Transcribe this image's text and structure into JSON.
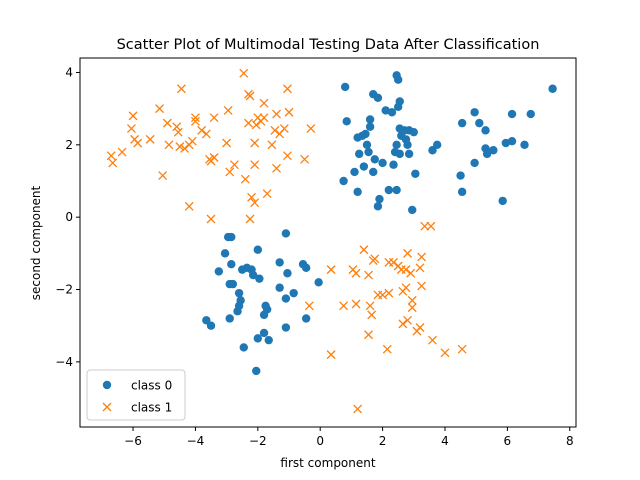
{
  "chart_data": {
    "type": "scatter",
    "title": "Scatter Plot of Multimodal Testing Data After Classification",
    "xlabel": "first component",
    "ylabel": "second component",
    "xlim": [
      -7.7,
      8.2
    ],
    "ylim": [
      -5.8,
      4.4
    ],
    "x_ticks": [
      -6,
      -4,
      -2,
      0,
      2,
      4,
      6,
      8
    ],
    "y_ticks": [
      -4,
      -2,
      0,
      2,
      4
    ],
    "legend": {
      "placement": "lower-left"
    },
    "grid": false,
    "series": [
      {
        "name": "class 0",
        "marker": "circle",
        "color": "#1f77b4",
        "points": [
          [
            2.45,
            3.92
          ],
          [
            2.5,
            3.8
          ],
          [
            1.7,
            3.4
          ],
          [
            1.85,
            3.3
          ],
          [
            0.8,
            3.6
          ],
          [
            2.55,
            3.2
          ],
          [
            2.5,
            3.05
          ],
          [
            2.1,
            2.95
          ],
          [
            2.3,
            2.9
          ],
          [
            1.6,
            2.7
          ],
          [
            0.85,
            2.65
          ],
          [
            1.6,
            2.5
          ],
          [
            2.55,
            2.45
          ],
          [
            2.7,
            2.4
          ],
          [
            2.85,
            2.4
          ],
          [
            3.0,
            2.35
          ],
          [
            2.6,
            2.25
          ],
          [
            2.75,
            2.15
          ],
          [
            1.45,
            2.3
          ],
          [
            1.35,
            2.25
          ],
          [
            1.2,
            2.2
          ],
          [
            1.5,
            2.0
          ],
          [
            2.45,
            2.0
          ],
          [
            2.8,
            2.0
          ],
          [
            3.75,
            2.0
          ],
          [
            1.55,
            1.8
          ],
          [
            1.25,
            1.75
          ],
          [
            2.4,
            1.8
          ],
          [
            2.55,
            1.75
          ],
          [
            2.85,
            1.75
          ],
          [
            3.6,
            1.85
          ],
          [
            1.75,
            1.6
          ],
          [
            2.0,
            1.5
          ],
          [
            1.4,
            1.4
          ],
          [
            2.35,
            1.45
          ],
          [
            1.1,
            1.25
          ],
          [
            1.7,
            1.25
          ],
          [
            3.05,
            1.2
          ],
          [
            0.75,
            1.0
          ],
          [
            2.2,
            0.75
          ],
          [
            2.45,
            0.75
          ],
          [
            1.2,
            0.7
          ],
          [
            1.9,
            0.5
          ],
          [
            1.85,
            0.3
          ],
          [
            2.95,
            0.2
          ],
          [
            4.95,
            2.9
          ],
          [
            4.55,
            2.6
          ],
          [
            5.1,
            2.6
          ],
          [
            5.3,
            2.4
          ],
          [
            6.15,
            2.85
          ],
          [
            6.75,
            2.85
          ],
          [
            6.15,
            2.1
          ],
          [
            5.95,
            2.05
          ],
          [
            6.55,
            2.0
          ],
          [
            5.3,
            1.9
          ],
          [
            5.55,
            1.85
          ],
          [
            5.35,
            1.75
          ],
          [
            4.95,
            1.5
          ],
          [
            4.5,
            1.15
          ],
          [
            4.55,
            0.7
          ],
          [
            5.85,
            0.45
          ],
          [
            7.45,
            3.55
          ],
          [
            -2.95,
            -0.55
          ],
          [
            -2.85,
            -0.55
          ],
          [
            -1.1,
            -0.45
          ],
          [
            -3.05,
            -1.0
          ],
          [
            -2.0,
            -0.9
          ],
          [
            -2.85,
            -1.3
          ],
          [
            -2.35,
            -1.4
          ],
          [
            -2.2,
            -1.45
          ],
          [
            -2.5,
            -1.45
          ],
          [
            -3.25,
            -1.5
          ],
          [
            -2.15,
            -1.6
          ],
          [
            -1.95,
            -1.7
          ],
          [
            -1.3,
            -1.25
          ],
          [
            -0.55,
            -1.3
          ],
          [
            -0.45,
            -1.4
          ],
          [
            -1.05,
            -1.55
          ],
          [
            -2.9,
            -1.85
          ],
          [
            -2.8,
            -1.85
          ],
          [
            -1.3,
            -1.95
          ],
          [
            -0.05,
            -1.8
          ],
          [
            -0.85,
            -2.1
          ],
          [
            -2.6,
            -2.1
          ],
          [
            -2.55,
            -2.3
          ],
          [
            -1.75,
            -2.45
          ],
          [
            -1.1,
            -2.25
          ],
          [
            -2.6,
            -2.45
          ],
          [
            -2.65,
            -2.6
          ],
          [
            -1.7,
            -2.55
          ],
          [
            -1.8,
            -2.7
          ],
          [
            -2.9,
            -2.8
          ],
          [
            -0.45,
            -2.8
          ],
          [
            -3.65,
            -2.85
          ],
          [
            -3.5,
            -3.0
          ],
          [
            -1.1,
            -3.05
          ],
          [
            -1.8,
            -3.2
          ],
          [
            -1.65,
            -3.4
          ],
          [
            -2.0,
            -3.35
          ],
          [
            -2.45,
            -3.6
          ],
          [
            -2.05,
            -4.25
          ]
        ]
      },
      {
        "name": "class 1",
        "marker": "x",
        "color": "#ff7f0e",
        "points": [
          [
            -2.45,
            3.98
          ],
          [
            -1.05,
            3.55
          ],
          [
            -4.45,
            3.55
          ],
          [
            -2.3,
            3.4
          ],
          [
            -2.25,
            3.35
          ],
          [
            -1.8,
            3.15
          ],
          [
            -5.15,
            3.0
          ],
          [
            -4.0,
            2.75
          ],
          [
            -4.0,
            2.65
          ],
          [
            -3.4,
            2.75
          ],
          [
            -2.95,
            2.95
          ],
          [
            -2.0,
            2.75
          ],
          [
            -1.8,
            2.75
          ],
          [
            -1.9,
            2.65
          ],
          [
            -1.4,
            2.85
          ],
          [
            -1.0,
            2.9
          ],
          [
            -2.3,
            2.6
          ],
          [
            -2.05,
            2.55
          ],
          [
            -6.0,
            2.8
          ],
          [
            -4.9,
            2.6
          ],
          [
            -4.6,
            2.5
          ],
          [
            -4.55,
            2.35
          ],
          [
            -3.8,
            2.4
          ],
          [
            -3.65,
            2.3
          ],
          [
            -6.05,
            2.45
          ],
          [
            -1.45,
            2.4
          ],
          [
            -1.3,
            2.3
          ],
          [
            -1.15,
            2.45
          ],
          [
            -0.3,
            2.45
          ],
          [
            -5.85,
            2.05
          ],
          [
            -5.95,
            2.15
          ],
          [
            -5.45,
            2.15
          ],
          [
            -4.85,
            2.0
          ],
          [
            -4.1,
            2.1
          ],
          [
            -4.5,
            1.95
          ],
          [
            -4.35,
            1.9
          ],
          [
            -4.2,
            2.0
          ],
          [
            -3.0,
            2.05
          ],
          [
            -2.1,
            2.05
          ],
          [
            -1.55,
            2.0
          ],
          [
            -6.35,
            1.8
          ],
          [
            -6.7,
            1.7
          ],
          [
            -6.65,
            1.5
          ],
          [
            -3.5,
            1.55
          ],
          [
            -3.4,
            1.65
          ],
          [
            -3.55,
            1.6
          ],
          [
            -2.75,
            1.45
          ],
          [
            -2.1,
            1.45
          ],
          [
            -1.05,
            1.7
          ],
          [
            -0.5,
            1.6
          ],
          [
            -2.9,
            1.25
          ],
          [
            -5.05,
            1.15
          ],
          [
            -2.4,
            1.05
          ],
          [
            -1.4,
            1.35
          ],
          [
            -1.7,
            0.65
          ],
          [
            -2.2,
            0.55
          ],
          [
            -2.1,
            0.4
          ],
          [
            -4.2,
            0.3
          ],
          [
            -3.5,
            -0.05
          ],
          [
            -2.25,
            -0.05
          ],
          [
            3.35,
            -0.25
          ],
          [
            3.55,
            -0.25
          ],
          [
            1.4,
            -0.9
          ],
          [
            1.75,
            -1.15
          ],
          [
            1.7,
            -1.2
          ],
          [
            2.8,
            -1.0
          ],
          [
            3.25,
            -1.1
          ],
          [
            2.2,
            -1.25
          ],
          [
            2.35,
            -1.25
          ],
          [
            0.35,
            -1.45
          ],
          [
            1.05,
            -1.45
          ],
          [
            1.15,
            -1.55
          ],
          [
            2.5,
            -1.35
          ],
          [
            2.6,
            -1.45
          ],
          [
            2.75,
            -1.45
          ],
          [
            3.2,
            -1.4
          ],
          [
            1.55,
            -1.6
          ],
          [
            2.9,
            -1.55
          ],
          [
            1.85,
            -2.15
          ],
          [
            2.0,
            -2.15
          ],
          [
            2.2,
            -2.1
          ],
          [
            2.65,
            -2.05
          ],
          [
            2.75,
            -1.95
          ],
          [
            3.25,
            -1.9
          ],
          [
            1.6,
            -2.45
          ],
          [
            1.65,
            -2.7
          ],
          [
            0.75,
            -2.45
          ],
          [
            -0.35,
            -2.45
          ],
          [
            1.15,
            -2.4
          ],
          [
            2.95,
            -2.3
          ],
          [
            2.95,
            -2.5
          ],
          [
            2.8,
            -2.85
          ],
          [
            2.65,
            -2.95
          ],
          [
            3.2,
            -3.05
          ],
          [
            3.1,
            -3.15
          ],
          [
            1.55,
            -3.25
          ],
          [
            3.6,
            -3.4
          ],
          [
            4.0,
            -3.75
          ],
          [
            4.55,
            -3.65
          ],
          [
            2.15,
            -3.65
          ],
          [
            0.35,
            -3.8
          ],
          [
            1.2,
            -5.3
          ]
        ]
      }
    ]
  }
}
